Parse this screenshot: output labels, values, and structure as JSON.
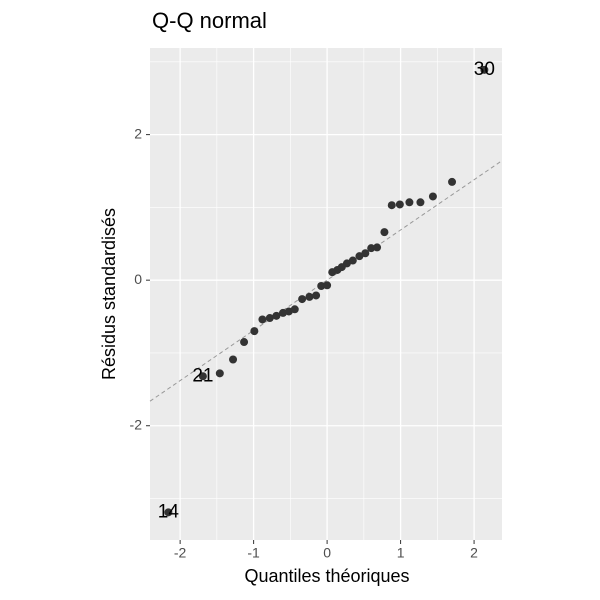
{
  "chart_data": {
    "type": "scatter",
    "title": "Q-Q normal",
    "xlabel": "Quantiles théoriques",
    "ylabel": "Résidus standardisés",
    "x": [
      -2.16,
      -1.69,
      -1.46,
      -1.28,
      -1.13,
      -0.99,
      -0.88,
      -0.78,
      -0.69,
      -0.6,
      -0.52,
      -0.44,
      -0.34,
      -0.24,
      -0.15,
      -0.08,
      0,
      0.07,
      0.14,
      0.2,
      0.27,
      0.35,
      0.44,
      0.52,
      0.6,
      0.68,
      0.78,
      0.88,
      0.99,
      1.12,
      1.27,
      1.44,
      1.7,
      2.14
    ],
    "values": [
      -3.19,
      -1.32,
      -1.28,
      -1.09,
      -0.85,
      -0.7,
      -0.54,
      -0.52,
      -0.49,
      -0.45,
      -0.43,
      -0.4,
      -0.26,
      -0.23,
      -0.21,
      -0.08,
      -0.07,
      0.11,
      0.14,
      0.18,
      0.23,
      0.27,
      0.33,
      0.37,
      0.44,
      0.45,
      0.66,
      1.03,
      1.04,
      1.07,
      1.07,
      1.15,
      1.35,
      2.89
    ],
    "labels": [
      "14",
      "21",
      null,
      null,
      null,
      null,
      null,
      null,
      null,
      null,
      null,
      null,
      null,
      null,
      null,
      null,
      null,
      null,
      null,
      null,
      null,
      null,
      null,
      null,
      null,
      null,
      null,
      null,
      null,
      null,
      null,
      null,
      null,
      "30"
    ],
    "color": "#333333",
    "qq_line": {
      "slope": 0.69,
      "intercept": 0,
      "color": "#999999"
    },
    "xlim": [
      -2.41,
      2.38
    ],
    "ylim": [
      -3.57,
      3.19
    ],
    "xticks": [
      -2,
      -1,
      0,
      1,
      2
    ],
    "yticks": [
      -2,
      0,
      2
    ],
    "x_minor_ticks": [
      -1.5,
      -0.5,
      0.5,
      1.5
    ],
    "y_minor_ticks": [
      -3,
      -1,
      1,
      3
    ],
    "grid": true
  }
}
